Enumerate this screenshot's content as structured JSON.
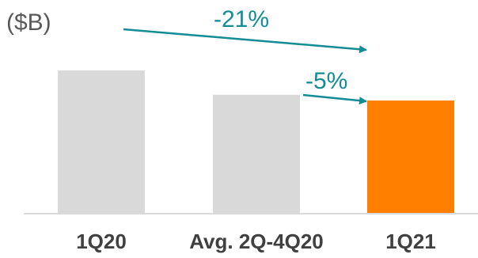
{
  "chart_data": {
    "type": "bar",
    "unit_label": "($B)",
    "categories": [
      "1Q20",
      "Avg. 2Q-4Q20",
      "1Q21"
    ],
    "values": [
      100,
      83,
      79
    ],
    "colors": [
      "#d9d9d9",
      "#d9d9d9",
      "#ff8000"
    ],
    "value_axis": "not shown",
    "grid": false,
    "annotations": [
      {
        "label": "-21%",
        "from": "1Q20",
        "to": "1Q21",
        "color": "#138c95"
      },
      {
        "label": "-5%",
        "from": "Avg. 2Q-4Q20",
        "to": "1Q21",
        "color": "#138c95"
      }
    ],
    "axis_line_color": "#d9d9d9"
  }
}
